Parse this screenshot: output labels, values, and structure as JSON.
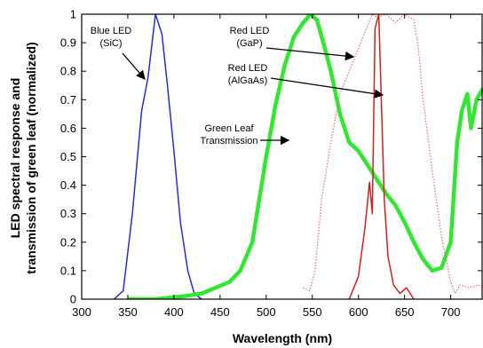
{
  "chart_data": {
    "type": "line",
    "title": "",
    "xlabel": "Wavelength (nm)",
    "ylabel_lines": [
      "LED spectral response and",
      "transmission of green leaf (normalized)"
    ],
    "xlim": [
      300,
      735
    ],
    "ylim": [
      0,
      1
    ],
    "x_ticks": [
      300,
      350,
      400,
      450,
      500,
      550,
      600,
      650,
      700
    ],
    "y_ticks": [
      0,
      0.1,
      0.2,
      0.3,
      0.4,
      0.5,
      0.6,
      0.7,
      0.8,
      0.9,
      1
    ],
    "grid": false,
    "legend": "none",
    "series": [
      {
        "key": "blue_led",
        "color": "#2a2ad0",
        "style": "solid",
        "x": [
          335,
          345,
          355,
          365,
          372,
          380,
          387,
          393,
          400,
          407,
          415,
          422,
          430
        ],
        "y": [
          0.0,
          0.03,
          0.3,
          0.66,
          0.78,
          1.0,
          0.93,
          0.75,
          0.52,
          0.27,
          0.1,
          0.02,
          0.0
        ]
      },
      {
        "key": "green_leaf",
        "color": "#33e633",
        "style": "solid",
        "x": [
          350,
          380,
          410,
          430,
          445,
          460,
          472,
          485,
          500,
          510,
          520,
          530,
          540,
          548,
          555,
          562,
          570,
          580,
          590,
          600,
          610,
          620,
          630,
          640,
          650,
          660,
          670,
          680,
          690,
          700,
          707,
          712,
          718,
          722,
          728,
          735
        ],
        "y": [
          0.0,
          0.0,
          0.01,
          0.02,
          0.04,
          0.06,
          0.1,
          0.2,
          0.5,
          0.68,
          0.82,
          0.92,
          0.97,
          1.0,
          0.98,
          0.9,
          0.8,
          0.65,
          0.55,
          0.52,
          0.47,
          0.42,
          0.37,
          0.33,
          0.27,
          0.2,
          0.14,
          0.1,
          0.11,
          0.2,
          0.55,
          0.66,
          0.72,
          0.6,
          0.7,
          0.74
        ]
      },
      {
        "key": "red_led_gap",
        "color": "#e07070",
        "style": "dotted",
        "x": [
          540,
          547,
          553,
          560,
          570,
          580,
          590,
          600,
          610,
          615,
          620,
          630,
          640,
          650,
          660,
          665,
          670,
          680,
          690,
          700,
          705,
          710,
          720,
          730,
          735
        ],
        "y": [
          0.04,
          0.03,
          0.1,
          0.35,
          0.55,
          0.72,
          0.8,
          0.88,
          0.96,
          1.0,
          0.99,
          1.0,
          0.97,
          1.0,
          0.98,
          0.88,
          0.7,
          0.45,
          0.22,
          0.06,
          0.02,
          0.05,
          0.04,
          0.05,
          0.04
        ]
      },
      {
        "key": "red_led_algaas",
        "color": "#d02020",
        "style": "solid",
        "x": [
          590,
          600,
          607,
          612,
          615,
          618,
          622,
          628,
          632,
          638,
          645,
          652,
          660
        ],
        "y": [
          0.0,
          0.08,
          0.25,
          0.41,
          0.3,
          0.95,
          1.0,
          0.35,
          0.15,
          0.05,
          0.02,
          0.04,
          0.0
        ]
      }
    ],
    "annotations": [
      {
        "lines": [
          "Blue LED",
          "(SiC)"
        ]
      },
      {
        "lines": [
          "Red LED",
          "(GaP)"
        ]
      },
      {
        "lines": [
          "Red LED",
          "(AlGaAs)"
        ]
      },
      {
        "lines": [
          "Green Leaf",
          "Transmission"
        ]
      }
    ]
  }
}
